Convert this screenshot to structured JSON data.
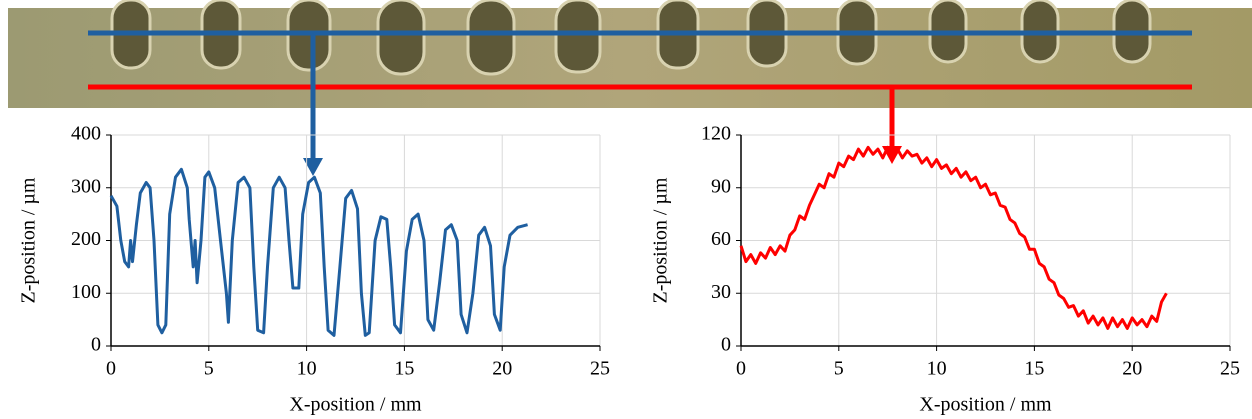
{
  "chart_data": [
    {
      "type": "line",
      "xlabel": "X-position / mm",
      "ylabel": "Z-position / µm",
      "color": "#1f5fa0",
      "grid": true,
      "xlim": [
        0,
        25
      ],
      "ylim": [
        0,
        400
      ],
      "xticks": [
        0,
        5,
        10,
        15,
        20,
        25
      ],
      "yticks": [
        0,
        100,
        200,
        300,
        400
      ],
      "x": [
        0,
        0.3,
        0.5,
        0.7,
        0.9,
        1.0,
        1.1,
        1.3,
        1.5,
        1.8,
        2.0,
        2.2,
        2.4,
        2.6,
        2.8,
        3.0,
        3.3,
        3.6,
        3.9,
        4.0,
        4.2,
        4.3,
        4.4,
        4.6,
        4.8,
        5.0,
        5.3,
        5.6,
        5.9,
        6.0,
        6.2,
        6.5,
        6.8,
        7.1,
        7.3,
        7.5,
        7.8,
        8.0,
        8.3,
        8.6,
        8.9,
        9.1,
        9.3,
        9.6,
        9.8,
        10.1,
        10.4,
        10.7,
        10.9,
        11.1,
        11.4,
        11.7,
        12.0,
        12.3,
        12.6,
        12.8,
        13.0,
        13.2,
        13.5,
        13.8,
        14.1,
        14.3,
        14.5,
        14.8,
        15.1,
        15.4,
        15.7,
        16.0,
        16.2,
        16.5,
        16.8,
        17.1,
        17.4,
        17.7,
        17.9,
        18.2,
        18.5,
        18.8,
        19.1,
        19.4,
        19.6,
        19.9,
        20.1,
        20.4,
        20.8,
        21.3
      ],
      "values": [
        285,
        265,
        200,
        160,
        150,
        200,
        160,
        230,
        290,
        310,
        300,
        200,
        40,
        25,
        40,
        250,
        320,
        335,
        300,
        240,
        150,
        200,
        120,
        200,
        320,
        330,
        300,
        200,
        100,
        45,
        200,
        310,
        320,
        300,
        150,
        30,
        25,
        150,
        300,
        320,
        300,
        200,
        110,
        110,
        250,
        310,
        320,
        290,
        150,
        30,
        20,
        150,
        280,
        295,
        260,
        100,
        20,
        25,
        200,
        245,
        240,
        150,
        40,
        25,
        180,
        240,
        250,
        200,
        50,
        30,
        120,
        220,
        230,
        200,
        60,
        25,
        100,
        210,
        225,
        190,
        60,
        30,
        150,
        210,
        225,
        230
      ]
    },
    {
      "type": "line",
      "xlabel": "X-position / mm",
      "ylabel": "Z-position / µm",
      "color": "#ff0000",
      "grid": true,
      "xlim": [
        0,
        25
      ],
      "ylim": [
        0,
        120
      ],
      "xticks": [
        0,
        5,
        10,
        15,
        20,
        25
      ],
      "yticks": [
        0,
        30,
        60,
        90,
        120
      ],
      "x": [
        0,
        0.25,
        0.5,
        0.75,
        1,
        1.25,
        1.5,
        1.75,
        2,
        2.25,
        2.5,
        2.75,
        3,
        3.25,
        3.5,
        3.75,
        4,
        4.25,
        4.5,
        4.75,
        5,
        5.25,
        5.5,
        5.75,
        6,
        6.25,
        6.5,
        6.75,
        7,
        7.25,
        7.5,
        7.75,
        8,
        8.25,
        8.5,
        8.75,
        9,
        9.25,
        9.5,
        9.75,
        10,
        10.25,
        10.5,
        10.75,
        11,
        11.25,
        11.5,
        11.75,
        12,
        12.25,
        12.5,
        12.75,
        13,
        13.25,
        13.5,
        13.75,
        14,
        14.25,
        14.5,
        14.75,
        15,
        15.25,
        15.5,
        15.75,
        16,
        16.25,
        16.5,
        16.75,
        17,
        17.25,
        17.5,
        17.75,
        18,
        18.25,
        18.5,
        18.75,
        19,
        19.25,
        19.5,
        19.75,
        20,
        20.25,
        20.5,
        20.75,
        21,
        21.25,
        21.5,
        21.75
      ],
      "values": [
        57,
        48,
        52,
        47,
        53,
        50,
        56,
        52,
        57,
        54,
        63,
        66,
        74,
        72,
        80,
        86,
        92,
        90,
        98,
        96,
        104,
        102,
        108,
        106,
        112,
        108,
        113,
        109,
        112,
        107,
        113,
        110,
        112,
        107,
        111,
        108,
        109,
        104,
        107,
        102,
        106,
        101,
        103,
        98,
        101,
        96,
        99,
        94,
        96,
        90,
        92,
        86,
        87,
        80,
        79,
        72,
        70,
        64,
        62,
        55,
        55,
        47,
        45,
        38,
        36,
        29,
        27,
        22,
        23,
        17,
        20,
        13,
        17,
        12,
        16,
        10,
        16,
        11,
        15,
        10,
        16,
        12,
        15,
        11,
        17,
        14,
        25,
        30
      ]
    }
  ]
}
